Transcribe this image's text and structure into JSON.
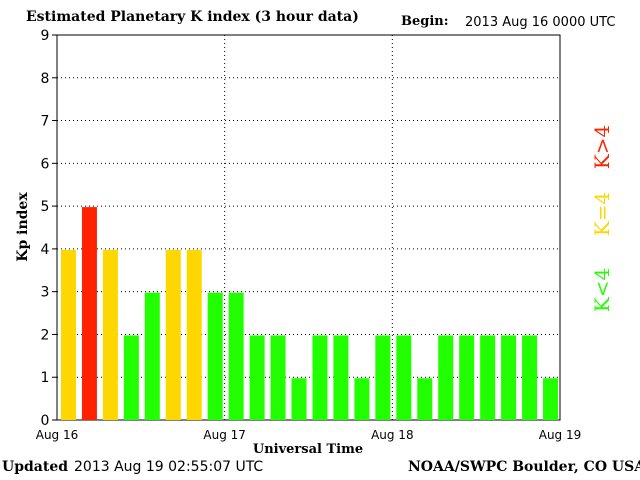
{
  "header": {
    "title": "Estimated Planetary K index (3 hour data)",
    "begin_label": "Begin:",
    "begin_value": "2013 Aug 16 0000 UTC"
  },
  "footer": {
    "updated_label": "Updated",
    "updated_value": "2013 Aug 19 02:55:07 UTC",
    "source": "NOAA/SWPC Boulder, CO USA"
  },
  "colors": {
    "low": "#22ff00",
    "equal4": "#ffd700",
    "high": "#ff2200"
  },
  "chart_data": {
    "type": "bar",
    "title": "Estimated Planetary K index (3 hour data)",
    "xlabel": "Universal Time",
    "ylabel": "Kp index",
    "ylim": [
      0,
      9
    ],
    "yticks": [
      0,
      1,
      2,
      3,
      4,
      5,
      6,
      7,
      8,
      9
    ],
    "xticks": [
      "Aug 16",
      "Aug 17",
      "Aug 18",
      "Aug 19"
    ],
    "grid": true,
    "values": [
      4,
      5,
      4,
      2,
      3,
      4,
      4,
      3,
      3,
      2,
      2,
      1,
      2,
      2,
      1,
      2,
      2,
      1,
      2,
      2,
      2,
      2,
      2,
      1
    ],
    "legend": [
      "K<4",
      "K=4",
      "K>4"
    ]
  }
}
